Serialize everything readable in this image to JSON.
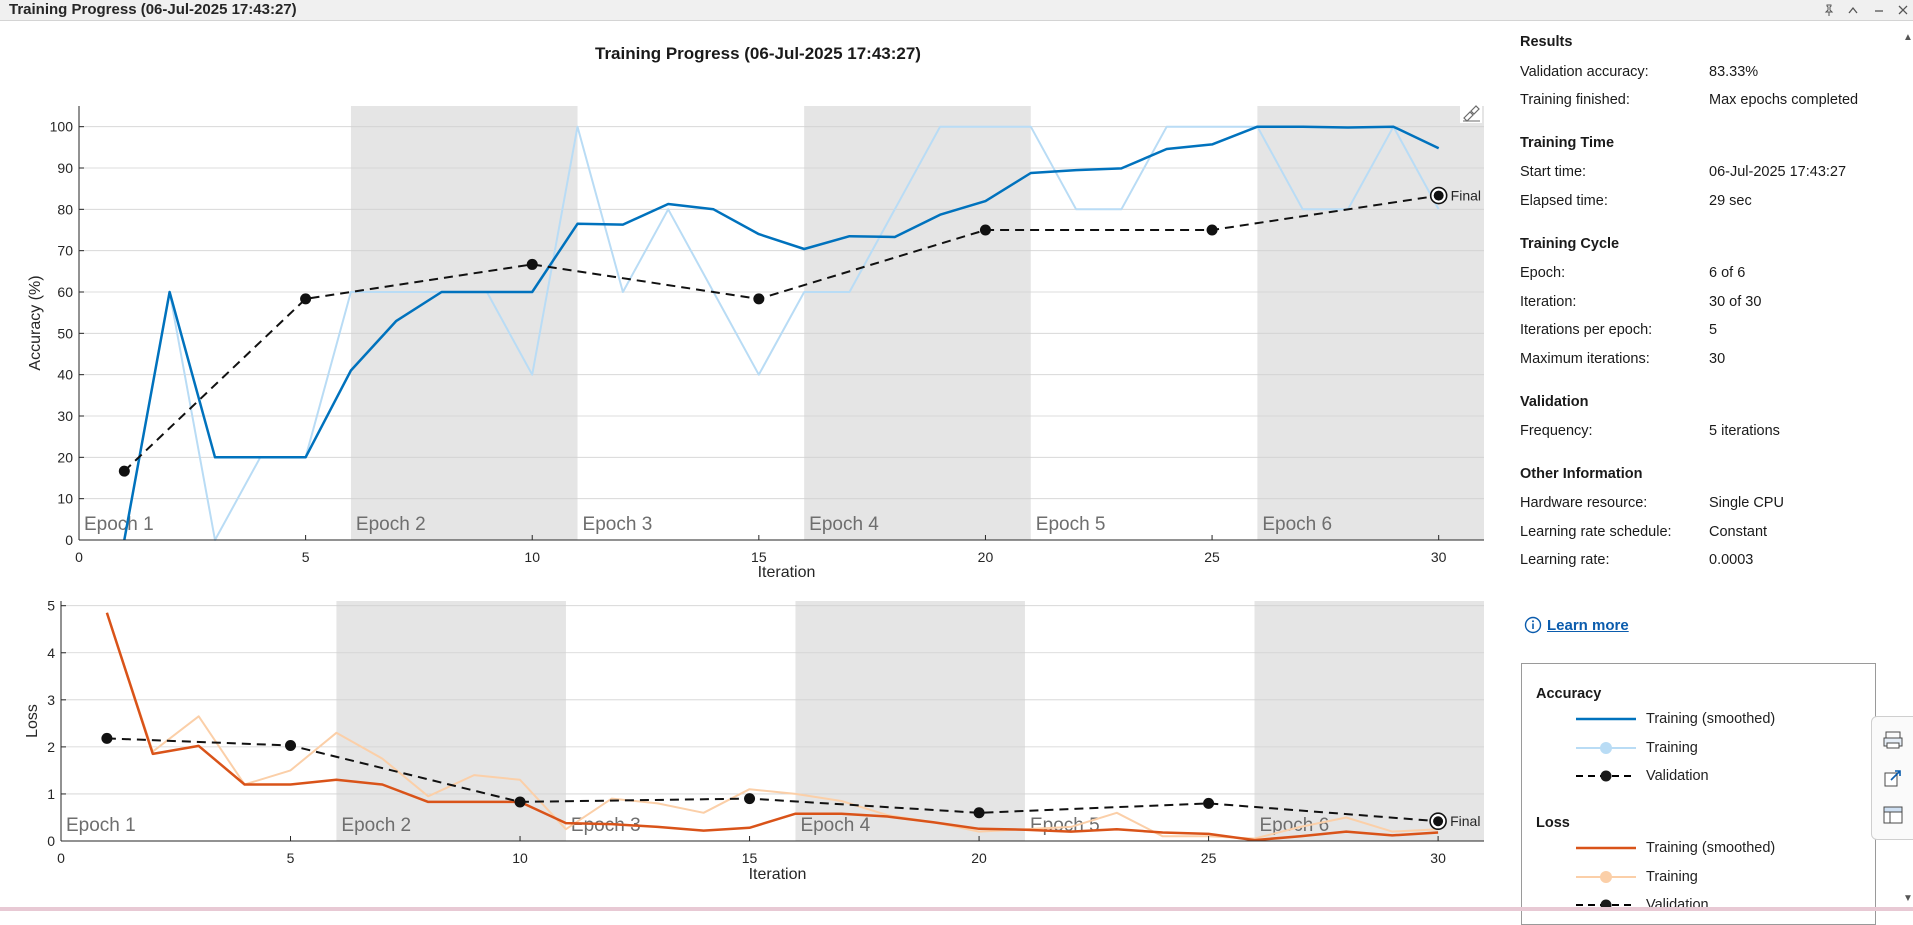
{
  "window": {
    "title": "Training Progress (06-Jul-2025 17:43:27)"
  },
  "chart_title": "Training Progress (06-Jul-2025 17:43:27)",
  "results": {
    "heading": "Results",
    "rows": [
      {
        "label": "Validation accuracy:",
        "value": "83.33%"
      },
      {
        "label": "Training finished:",
        "value": "Max epochs completed"
      }
    ]
  },
  "training_time": {
    "heading": "Training Time",
    "rows": [
      {
        "label": "Start time:",
        "value": "06-Jul-2025 17:43:27"
      },
      {
        "label": "Elapsed time:",
        "value": "29 sec"
      }
    ]
  },
  "training_cycle": {
    "heading": "Training Cycle",
    "rows": [
      {
        "label": "Epoch:",
        "value": "6 of 6"
      },
      {
        "label": "Iteration:",
        "value": "30 of 30"
      },
      {
        "label": "Iterations per epoch:",
        "value": "5"
      },
      {
        "label": "Maximum iterations:",
        "value": "30"
      }
    ]
  },
  "validation": {
    "heading": "Validation",
    "rows": [
      {
        "label": "Frequency:",
        "value": "5 iterations"
      }
    ]
  },
  "other_info": {
    "heading": "Other Information",
    "rows": [
      {
        "label": "Hardware resource:",
        "value": "Single CPU"
      },
      {
        "label": "Learning rate schedule:",
        "value": "Constant"
      },
      {
        "label": "Learning rate:",
        "value": "0.0003"
      }
    ]
  },
  "learn_more": "Learn more",
  "legend": {
    "accuracy_heading": "Accuracy",
    "accuracy_items": [
      "Training (smoothed)",
      "Training",
      "Validation"
    ],
    "loss_heading": "Loss",
    "loss_items": [
      "Training (smoothed)",
      "Training",
      "Validation"
    ]
  },
  "icons": {
    "pin": "pin-icon",
    "expand": "expand-icon",
    "minimize": "minimize-icon",
    "close": "close-icon",
    "info": "info-icon",
    "brush": "brush-icon",
    "print": "print-icon",
    "export": "export-icon",
    "layout": "layout-icon"
  },
  "colors": {
    "accuracy_smoothed": "#0072bd",
    "accuracy_training": "#b9dcf5",
    "loss_smoothed": "#d95319",
    "loss_training": "#fbcfa8",
    "validation": "#000000",
    "epoch_shade": "#e5e5e5"
  },
  "chart_data": [
    {
      "type": "line",
      "ylabel": "Accuracy (%)",
      "xlabel": "Iteration",
      "xlim": [
        0,
        31
      ],
      "ylim": [
        0,
        105
      ],
      "xticks": [
        0,
        5,
        10,
        15,
        20,
        25,
        30
      ],
      "yticks": [
        0,
        10,
        20,
        30,
        40,
        50,
        60,
        70,
        80,
        90,
        100
      ],
      "grid": true,
      "epochs": [
        {
          "label": "Epoch 1",
          "start": 0,
          "end": 6,
          "shaded": false
        },
        {
          "label": "Epoch 2",
          "start": 6,
          "end": 11,
          "shaded": true
        },
        {
          "label": "Epoch 3",
          "start": 11,
          "end": 16,
          "shaded": false
        },
        {
          "label": "Epoch 4",
          "start": 16,
          "end": 21,
          "shaded": true
        },
        {
          "label": "Epoch 5",
          "start": 21,
          "end": 26,
          "shaded": false
        },
        {
          "label": "Epoch 6",
          "start": 26,
          "end": 31,
          "shaded": true
        }
      ],
      "series": [
        {
          "name": "Training",
          "style": "light",
          "x": [
            1,
            2,
            3,
            4,
            5,
            6,
            7,
            8,
            9,
            10,
            11,
            12,
            13,
            14,
            15,
            16,
            17,
            18,
            19,
            20,
            21,
            22,
            23,
            24,
            25,
            26,
            27,
            28,
            29,
            30
          ],
          "y": [
            0,
            60,
            0,
            20,
            20,
            60,
            60,
            60,
            60,
            40,
            100,
            60,
            80,
            60,
            40,
            60,
            60,
            80,
            100,
            100,
            100,
            80,
            80,
            100,
            100,
            100,
            80,
            80,
            100,
            80
          ]
        },
        {
          "name": "Training (smoothed)",
          "style": "smoothed",
          "x": [
            1,
            2,
            3,
            4,
            5,
            6,
            7,
            8,
            9,
            10,
            11,
            12,
            13,
            14,
            15,
            16,
            17,
            18,
            19,
            20,
            21,
            22,
            23,
            24,
            25,
            26,
            27,
            28,
            29,
            30
          ],
          "y": [
            0,
            60,
            20,
            20,
            20,
            41,
            53,
            60,
            60,
            60,
            76.5,
            76.3,
            81.3,
            80,
            74,
            70.4,
            73.5,
            73.3,
            78.7,
            82,
            88.8,
            89.5,
            89.9,
            94.6,
            95.7,
            100,
            100,
            99.8,
            100,
            94.8
          ]
        },
        {
          "name": "Validation",
          "style": "validation",
          "x": [
            1,
            5,
            10,
            15,
            20,
            25,
            30
          ],
          "y": [
            16.67,
            58.33,
            66.67,
            58.33,
            75,
            75,
            83.33
          ]
        }
      ],
      "final_label": "Final"
    },
    {
      "type": "line",
      "ylabel": "Loss",
      "xlabel": "Iteration",
      "xlim": [
        0,
        31
      ],
      "ylim": [
        0,
        5.1
      ],
      "xticks": [
        0,
        5,
        10,
        15,
        20,
        25,
        30
      ],
      "yticks": [
        0,
        1,
        2,
        3,
        4,
        5
      ],
      "grid": true,
      "epochs": [
        {
          "label": "Epoch 1",
          "start": 0,
          "end": 6,
          "shaded": false
        },
        {
          "label": "Epoch 2",
          "start": 6,
          "end": 11,
          "shaded": true
        },
        {
          "label": "Epoch 3",
          "start": 11,
          "end": 16,
          "shaded": false
        },
        {
          "label": "Epoch 4",
          "start": 16,
          "end": 21,
          "shaded": true
        },
        {
          "label": "Epoch 5",
          "start": 21,
          "end": 26,
          "shaded": false
        },
        {
          "label": "Epoch 6",
          "start": 26,
          "end": 31,
          "shaded": true
        }
      ],
      "series": [
        {
          "name": "Training",
          "style": "light",
          "x": [
            1,
            2,
            3,
            4,
            5,
            6,
            7,
            8,
            9,
            10,
            11,
            12,
            13,
            14,
            15,
            16,
            17,
            18,
            19,
            20,
            21,
            22,
            23,
            24,
            25,
            26,
            27,
            28,
            29,
            30
          ],
          "y": [
            4.85,
            1.9,
            2.65,
            1.2,
            1.5,
            2.3,
            1.75,
            0.95,
            1.4,
            1.3,
            0.25,
            0.9,
            0.8,
            0.6,
            1.1,
            1.0,
            0.85,
            0.55,
            0.4,
            0.2,
            0.25,
            0.3,
            0.6,
            0.1,
            0.1,
            0.05,
            0.3,
            0.5,
            0.2,
            0.25
          ]
        },
        {
          "name": "Training (smoothed)",
          "style": "smoothed",
          "x": [
            1,
            2,
            3,
            4,
            5,
            6,
            7,
            8,
            9,
            10,
            11,
            12,
            13,
            14,
            15,
            16,
            17,
            18,
            19,
            20,
            21,
            22,
            23,
            24,
            25,
            26,
            27,
            28,
            29,
            30
          ],
          "y": [
            4.85,
            1.85,
            2.02,
            1.2,
            1.2,
            1.3,
            1.2,
            0.83,
            0.83,
            0.83,
            0.38,
            0.36,
            0.3,
            0.22,
            0.28,
            0.58,
            0.58,
            0.52,
            0.4,
            0.26,
            0.24,
            0.2,
            0.25,
            0.18,
            0.15,
            0.02,
            0.1,
            0.2,
            0.12,
            0.18
          ]
        },
        {
          "name": "Validation",
          "style": "validation",
          "x": [
            1,
            5,
            10,
            15,
            20,
            25,
            30
          ],
          "y": [
            2.18,
            2.03,
            0.83,
            0.9,
            0.6,
            0.8,
            0.42
          ]
        }
      ],
      "final_label": "Final"
    }
  ]
}
